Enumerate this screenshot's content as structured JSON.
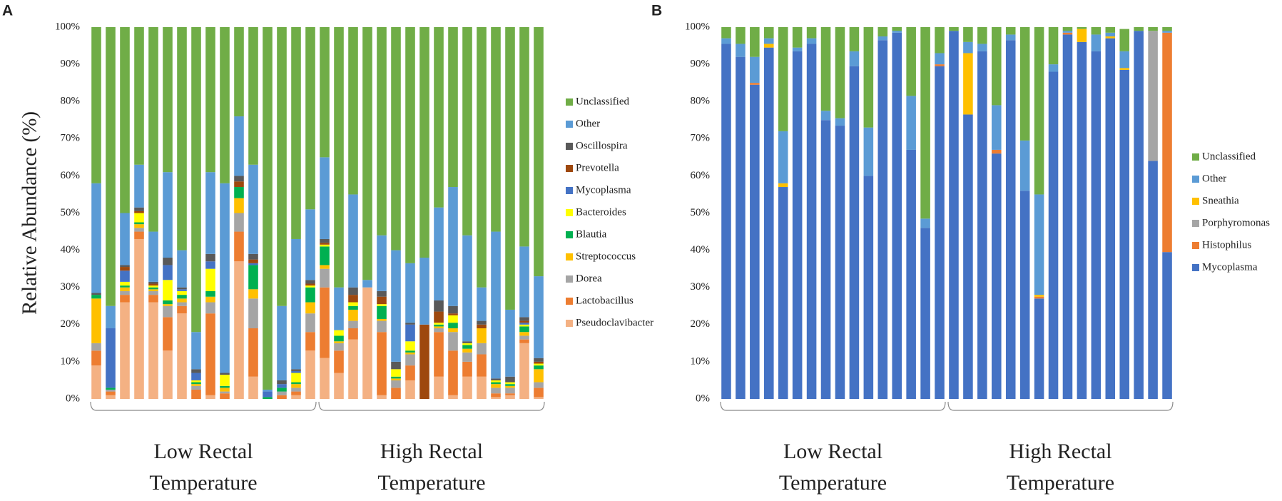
{
  "chart_data": [
    {
      "type": "stacked_bar",
      "panel": "A",
      "ylabel": "Relative Abundance (%)",
      "legend": "right",
      "categories": [
        null,
        null,
        null,
        null,
        null,
        null,
        null,
        null,
        null,
        null,
        null,
        null,
        null,
        null,
        null,
        null,
        null,
        null,
        null,
        null,
        null,
        null,
        null,
        null,
        null,
        null,
        null,
        null,
        null,
        null,
        null,
        null
      ],
      "groups": [
        "Low Rectal Temperature",
        "High Rectal Temperature"
      ],
      "ylim": [
        0,
        100
      ],
      "yticks": [
        {
          "value": 0,
          "label": "0%"
        },
        {
          "value": 10,
          "label": "10%"
        },
        {
          "value": 20,
          "label": "20%"
        },
        {
          "value": 30,
          "label": "30%"
        },
        {
          "value": 40,
          "label": "40%"
        },
        {
          "value": 50,
          "label": "50%"
        },
        {
          "value": 60,
          "label": "60%"
        },
        {
          "value": 70,
          "label": "70%"
        },
        {
          "value": 80,
          "label": "80%"
        },
        {
          "value": 90,
          "label": "90%"
        },
        {
          "value": 100,
          "label": "100%"
        }
      ],
      "series": [
        {
          "name": "Pseudoclavibacter",
          "color": "#f4b183",
          "values": [
            9,
            1,
            26,
            43,
            26,
            13,
            23,
            0,
            1,
            0,
            37,
            6,
            0,
            0,
            1,
            13,
            11,
            7,
            16,
            30,
            1,
            0,
            5,
            0,
            6,
            1,
            6,
            6,
            0.5,
            1,
            15,
            0.5
          ]
        },
        {
          "name": "Lactobacillus",
          "color": "#ed7d31",
          "values": [
            4,
            1,
            2,
            2,
            2,
            9,
            2,
            2.5,
            22,
            1.5,
            8,
            13,
            0,
            1,
            1,
            5,
            19,
            6,
            3,
            0,
            17,
            3,
            4,
            0,
            12,
            12,
            4,
            6,
            1,
            0.5,
            1,
            2.5
          ]
        },
        {
          "name": "Dorea",
          "color": "#a5a5a5",
          "values": [
            2,
            0.5,
            1,
            1,
            1,
            3,
            1,
            1,
            3,
            0.5,
            5,
            8,
            0,
            1,
            1,
            5,
            5,
            2,
            2,
            0,
            3,
            2,
            3,
            0,
            1,
            5,
            2.5,
            3,
            1.5,
            1.5,
            1,
            1.5
          ]
        },
        {
          "name": "Streptococcus",
          "color": "#ffc000",
          "values": [
            12,
            0,
            1,
            1,
            0.5,
            0.5,
            1,
            0.5,
            1.5,
            1,
            4,
            2.5,
            0,
            0,
            1,
            3,
            1,
            0.5,
            3,
            0,
            0.5,
            0.5,
            0.5,
            0,
            0.5,
            1,
            1,
            4,
            1,
            0.5,
            1,
            3.5
          ]
        },
        {
          "name": "Blautia",
          "color": "#00b050",
          "values": [
            1,
            0.5,
            0.5,
            0.5,
            0.5,
            1,
            1,
            0.5,
            1.5,
            0.5,
            3,
            6.5,
            0.5,
            1,
            0.5,
            4,
            5,
            1.5,
            1,
            0,
            3.5,
            0.5,
            0.5,
            0,
            0.5,
            1.5,
            1,
            0,
            0.5,
            0.5,
            1.5,
            1
          ]
        },
        {
          "name": "Bacteroides",
          "color": "#ffff00",
          "values": [
            0,
            0,
            1,
            2.5,
            0.5,
            5.5,
            1,
            0.5,
            6,
            3,
            0,
            0,
            0,
            0,
            2.5,
            0.5,
            0.5,
            1.5,
            1,
            0,
            0.5,
            2,
            2.5,
            0,
            0.5,
            2,
            0.5,
            0,
            0.5,
            0.5,
            0.5,
            0.5
          ]
        },
        {
          "name": "Mycoplasma",
          "color": "#4472c4",
          "values": [
            0,
            16,
            3,
            0,
            0,
            4,
            0.5,
            2,
            2,
            0,
            0,
            0.5,
            1.5,
            1,
            0.5,
            0,
            0,
            0,
            0,
            0,
            0,
            0,
            4.5,
            0,
            0,
            0,
            0,
            0,
            0,
            0,
            0.5,
            0
          ]
        },
        {
          "name": "Prevotella",
          "color": "#9e480e",
          "values": [
            0,
            0,
            1,
            0.5,
            0.5,
            0,
            0,
            0,
            0,
            0,
            1.5,
            1,
            0,
            0,
            0,
            0.5,
            0.5,
            0,
            2,
            0,
            2,
            0,
            0,
            20,
            3,
            0.5,
            0,
            1,
            0,
            0,
            0.5,
            0.5
          ]
        },
        {
          "name": "Oscillospira",
          "color": "#595959",
          "values": [
            0.5,
            0,
            0.5,
            1,
            0.5,
            2,
            0.5,
            1,
            2,
            0.5,
            1.5,
            1.5,
            0,
            1,
            0.5,
            1,
            1,
            0,
            2,
            0,
            1.5,
            2,
            0.5,
            0,
            3,
            2,
            0.5,
            1,
            0.5,
            1.5,
            1,
            1
          ]
        },
        {
          "name": "Other",
          "color": "#5b9bd5",
          "values": [
            29.5,
            6,
            14,
            11.5,
            13.5,
            23,
            10,
            10,
            22,
            51,
            16,
            24,
            0.5,
            20,
            35,
            19,
            22,
            11.5,
            25,
            2,
            15,
            30,
            16,
            18,
            25,
            32,
            28.5,
            9,
            39.5,
            18,
            19,
            22
          ]
        },
        {
          "name": "Unclassified",
          "color": "#70ad47",
          "values": [
            42,
            75,
            50,
            37,
            55,
            39,
            60,
            82,
            39,
            42,
            24,
            37,
            97.5,
            75,
            57,
            49,
            35,
            70,
            45,
            68,
            56,
            60,
            63.5,
            62,
            48.5,
            43,
            56,
            70,
            55,
            76,
            59,
            67
          ]
        }
      ]
    },
    {
      "type": "stacked_bar",
      "panel": "B",
      "legend": "right",
      "categories": [
        null,
        null,
        null,
        null,
        null,
        null,
        null,
        null,
        null,
        null,
        null,
        null,
        null,
        null,
        null,
        null,
        null,
        null,
        null,
        null,
        null,
        null,
        null,
        null,
        null,
        null,
        null,
        null,
        null,
        null,
        null,
        null
      ],
      "groups": [
        "Low Rectal Temperature",
        "High Rectal Temperature"
      ],
      "ylim": [
        0,
        100
      ],
      "yticks": [
        {
          "value": 0,
          "label": "0%"
        },
        {
          "value": 10,
          "label": "10%"
        },
        {
          "value": 20,
          "label": "20%"
        },
        {
          "value": 30,
          "label": "30%"
        },
        {
          "value": 40,
          "label": "40%"
        },
        {
          "value": 50,
          "label": "50%"
        },
        {
          "value": 60,
          "label": "60%"
        },
        {
          "value": 70,
          "label": "70%"
        },
        {
          "value": 80,
          "label": "80%"
        },
        {
          "value": 90,
          "label": "90%"
        },
        {
          "value": 100,
          "label": "100%"
        }
      ],
      "series": [
        {
          "name": "Mycoplasma",
          "color": "#4472c4",
          "values": [
            95.5,
            92,
            84.5,
            94.5,
            57,
            93.5,
            95.5,
            75,
            73.5,
            89.5,
            60,
            96.5,
            98.5,
            67,
            46,
            89.5,
            99,
            76.5,
            93.5,
            66,
            96.5,
            56,
            27,
            88,
            98,
            96,
            93.5,
            97,
            88.5,
            99,
            64,
            39.5
          ]
        },
        {
          "name": "Histophilus",
          "color": "#ed7d31",
          "values": [
            0,
            0,
            0.5,
            0,
            0,
            0,
            0,
            0,
            0,
            0,
            0,
            0,
            0,
            0,
            0,
            0.5,
            0,
            0,
            0,
            1,
            0,
            0,
            0.5,
            0,
            0.5,
            0,
            0,
            0,
            0,
            0,
            0,
            59
          ]
        },
        {
          "name": "Porphyromonas",
          "color": "#a5a5a5",
          "values": [
            0,
            0,
            0,
            0,
            0,
            0,
            0,
            0,
            0,
            0,
            0,
            0,
            0,
            0,
            0,
            0,
            0,
            0,
            0,
            0,
            0,
            0,
            0,
            0,
            0,
            0,
            0,
            0,
            0,
            0,
            35,
            0
          ]
        },
        {
          "name": "Sneathia",
          "color": "#ffc000",
          "values": [
            0,
            0,
            0,
            1,
            1,
            0,
            0,
            0,
            0,
            0,
            0,
            0,
            0,
            0,
            0,
            0,
            0,
            16.5,
            0,
            0,
            0,
            0,
            0.5,
            0,
            0,
            3.5,
            0,
            0.5,
            0.5,
            0,
            0,
            0
          ]
        },
        {
          "name": "Other",
          "color": "#5b9bd5",
          "values": [
            1.5,
            3.5,
            7,
            1.5,
            14,
            1,
            1.5,
            2.5,
            2,
            4,
            13,
            1,
            0.5,
            14.5,
            2.5,
            3,
            0,
            3,
            2,
            12,
            1.5,
            13.5,
            27,
            2,
            0.5,
            0,
            4.5,
            1,
            4.5,
            0,
            0,
            0.5
          ]
        },
        {
          "name": "Unclassified",
          "color": "#70ad47",
          "values": [
            3,
            4.5,
            8,
            3,
            28,
            5.5,
            3,
            22.5,
            24.5,
            6.5,
            27,
            2.5,
            1,
            18.5,
            51.5,
            7,
            1,
            4,
            4.5,
            21,
            2,
            30.5,
            45,
            10,
            1,
            0.5,
            2,
            1.5,
            6,
            1,
            1,
            1
          ]
        }
      ]
    }
  ]
}
